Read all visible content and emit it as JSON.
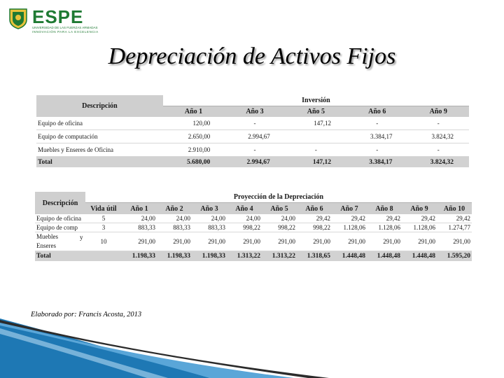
{
  "logo": {
    "brand": "ESPE",
    "line1": "UNIVERSIDAD DE LAS FUERZAS ARMADAS",
    "line2": "INNOVACIÓN PARA LA EXCELENCIA"
  },
  "title": "Depreciación de Activos Fijos",
  "investment_table": {
    "desc_header": "Descripción",
    "group_header": "Inversión",
    "years": [
      "Año 1",
      "Año 3",
      "Año 5",
      "Año 6",
      "Año 9"
    ],
    "rows": [
      {
        "label": "Equipo de oficina",
        "values": [
          "120,00",
          "-",
          "147,12",
          "-",
          "-"
        ]
      },
      {
        "label": "Equipo de computación",
        "values": [
          "2.650,00",
          "2.994,67",
          "",
          "3.384,17",
          "3.824,32"
        ]
      },
      {
        "label": "Muebles y Enseres de Oficina",
        "values": [
          "2.910,00",
          "-",
          "-",
          "-",
          "-"
        ]
      }
    ],
    "total": {
      "label": "Total",
      "values": [
        "5.680,00",
        "2.994,67",
        "147,12",
        "3.384,17",
        "3.824,32"
      ]
    }
  },
  "depreciation_table": {
    "desc_header": "Descripción",
    "group_header": "Proyección de la Depreciación",
    "life_header": "Vida útil",
    "years": [
      "Año 1",
      "Año 2",
      "Año 3",
      "Año 4",
      "Año 5",
      "Año 6",
      "Año 7",
      "Año 8",
      "Año 9",
      "Año 10"
    ],
    "rows": [
      {
        "label": "Equipo de oficina",
        "life": "5",
        "values": [
          "24,00",
          "24,00",
          "24,00",
          "24,00",
          "24,00",
          "29,42",
          "29,42",
          "29,42",
          "29,42",
          "29,42"
        ]
      },
      {
        "label": "Equipo de comp",
        "life": "3",
        "values": [
          "883,33",
          "883,33",
          "883,33",
          "998,22",
          "998,22",
          "998,22",
          "1.128,06",
          "1.128,06",
          "1.128,06",
          "1.274,77"
        ]
      },
      {
        "label_parts": [
          "Muebles",
          "y",
          "Enseres"
        ],
        "life": "10",
        "values": [
          "291,00",
          "291,00",
          "291,00",
          "291,00",
          "291,00",
          "291,00",
          "291,00",
          "291,00",
          "291,00",
          "291,00"
        ]
      }
    ],
    "total": {
      "label": "Total",
      "values": [
        "1.198,33",
        "1.198,33",
        "1.198,33",
        "1.313,22",
        "1.313,22",
        "1.318,65",
        "1.448,48",
        "1.448,48",
        "1.448,48",
        "1.595,20"
      ]
    }
  },
  "credit": "Elaborado por: Francis Acosta, 2013",
  "colors": {
    "brand_green": "#1f7a33",
    "header_gray": "#cfcfcf",
    "deco_blue": "#1e78b4"
  }
}
